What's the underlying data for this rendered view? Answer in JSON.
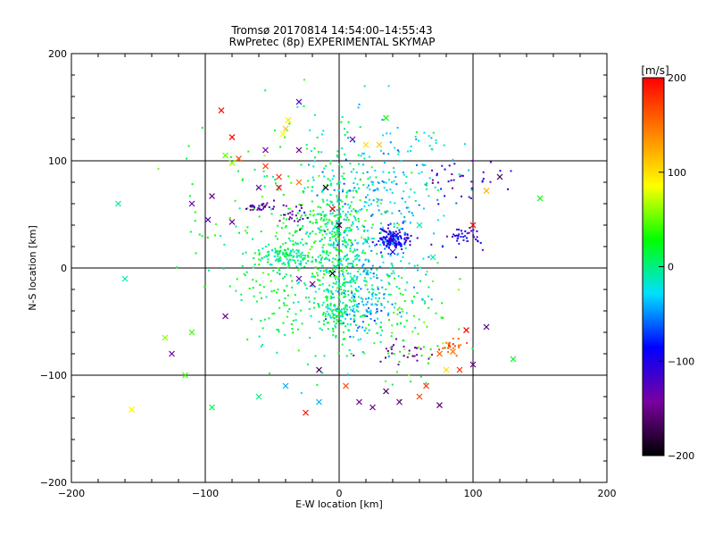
{
  "chart_data": {
    "type": "scatter",
    "title": "Tromsø 20170814 14:54:00–14:55:43",
    "subtitle": "RwPretec (8p) EXPERIMENTAL SKYMAP",
    "xlabel": "E-W location [km]",
    "ylabel": "N-S location [km]",
    "xlim": [
      -200,
      200
    ],
    "ylim": [
      -200,
      200
    ],
    "xticks": [
      "-200",
      "-100",
      "0",
      "100",
      "200"
    ],
    "yticks": [
      "-200",
      "-100",
      "0",
      "100",
      "200"
    ],
    "grid_lines": [
      -100,
      0,
      100
    ],
    "colorbar": {
      "label": "[m/s]",
      "range": [
        -200,
        200
      ],
      "ticks": [
        "200",
        "100",
        "0",
        "-100",
        "-200"
      ],
      "colormap": [
        "#000000",
        "#7a00a0",
        "#0000ff",
        "#00e0ff",
        "#00ff00",
        "#ffff00",
        "#ff8000",
        "#ff0000"
      ]
    },
    "markers": [
      "dot",
      "cross"
    ],
    "clusters": [
      {
        "x": 0,
        "y": 30,
        "sx": 10,
        "sy": 40,
        "v": 0,
        "n": 260
      },
      {
        "x": -40,
        "y": 12,
        "sx": 12,
        "sy": 6,
        "v": 0,
        "n": 130
      },
      {
        "x": -15,
        "y": 45,
        "sx": 10,
        "sy": 10,
        "v": 25,
        "n": 60
      },
      {
        "x": 20,
        "y": 0,
        "sx": 20,
        "sy": 30,
        "v": -30,
        "n": 220
      },
      {
        "x": 40,
        "y": 27,
        "sx": 6,
        "sy": 5,
        "v": -95,
        "n": 150
      },
      {
        "x": 0,
        "y": -40,
        "sx": 8,
        "sy": 10,
        "v": 0,
        "n": 120
      },
      {
        "x": 20,
        "y": -40,
        "sx": 10,
        "sy": 12,
        "v": -40,
        "n": 70
      },
      {
        "x": -20,
        "y": -20,
        "sx": 30,
        "sy": 30,
        "v": 15,
        "n": 200
      },
      {
        "x": 30,
        "y": 80,
        "sx": 30,
        "sy": 30,
        "v": -30,
        "n": 200
      },
      {
        "x": -30,
        "y": 60,
        "sx": 40,
        "sy": 40,
        "v": 20,
        "n": 150
      },
      {
        "x": 50,
        "y": -60,
        "sx": 20,
        "sy": 30,
        "v": 30,
        "n": 80
      },
      {
        "x": 95,
        "y": 28,
        "sx": 8,
        "sy": 5,
        "v": -110,
        "n": 40
      },
      {
        "x": 90,
        "y": 80,
        "sx": 15,
        "sy": 10,
        "v": -110,
        "n": 35
      },
      {
        "x": -60,
        "y": 57,
        "sx": 5,
        "sy": 2,
        "v": -130,
        "n": 30
      },
      {
        "x": -35,
        "y": 50,
        "sx": 5,
        "sy": 5,
        "v": -140,
        "n": 25
      },
      {
        "x": 85,
        "y": -73,
        "sx": 5,
        "sy": 3,
        "v": 160,
        "n": 25
      },
      {
        "x": 45,
        "y": -80,
        "sx": 12,
        "sy": 6,
        "v": -140,
        "n": 25
      }
    ],
    "crosses": [
      {
        "x": -88,
        "y": 147,
        "v": 195
      },
      {
        "x": -80,
        "y": 122,
        "v": 200
      },
      {
        "x": -75,
        "y": 102,
        "v": 170
      },
      {
        "x": -55,
        "y": 95,
        "v": 175
      },
      {
        "x": -45,
        "y": 85,
        "v": 180
      },
      {
        "x": -30,
        "y": 80,
        "v": 150
      },
      {
        "x": -85,
        "y": 105,
        "v": 50
      },
      {
        "x": -80,
        "y": 98,
        "v": 60
      },
      {
        "x": -42,
        "y": 125,
        "v": 90
      },
      {
        "x": -40,
        "y": 130,
        "v": 110
      },
      {
        "x": -38,
        "y": 138,
        "v": 95
      },
      {
        "x": 20,
        "y": 115,
        "v": 100
      },
      {
        "x": 30,
        "y": 115,
        "v": 110
      },
      {
        "x": -30,
        "y": 155,
        "v": -120
      },
      {
        "x": -30,
        "y": 110,
        "v": -150
      },
      {
        "x": -55,
        "y": 110,
        "v": -140
      },
      {
        "x": 10,
        "y": 120,
        "v": -130
      },
      {
        "x": 35,
        "y": 140,
        "v": 30
      },
      {
        "x": -110,
        "y": 60,
        "v": -130
      },
      {
        "x": -98,
        "y": 45,
        "v": -120
      },
      {
        "x": -95,
        "y": 67,
        "v": -150
      },
      {
        "x": -80,
        "y": 43,
        "v": -140
      },
      {
        "x": 20,
        "y": 25,
        "v": -10
      },
      {
        "x": -10,
        "y": 75,
        "v": -200
      },
      {
        "x": -5,
        "y": 55,
        "v": 200
      },
      {
        "x": 0,
        "y": 40,
        "v": -180
      },
      {
        "x": 10,
        "y": -10,
        "v": -10
      },
      {
        "x": -5,
        "y": -5,
        "v": -200
      },
      {
        "x": -20,
        "y": -15,
        "v": -150
      },
      {
        "x": 40,
        "y": 15,
        "v": -100
      },
      {
        "x": 130,
        "y": -85,
        "v": 20
      },
      {
        "x": -110,
        "y": -60,
        "v": 40
      },
      {
        "x": -125,
        "y": -80,
        "v": -140
      },
      {
        "x": -130,
        "y": -65,
        "v": 60
      },
      {
        "x": -115,
        "y": -100,
        "v": 40
      },
      {
        "x": -95,
        "y": -130,
        "v": 10
      },
      {
        "x": -155,
        "y": -132,
        "v": 90
      },
      {
        "x": -160,
        "y": -10,
        "v": -10
      },
      {
        "x": -165,
        "y": 60,
        "v": -10
      },
      {
        "x": -85,
        "y": -45,
        "v": -150
      },
      {
        "x": -60,
        "y": -120,
        "v": 0
      },
      {
        "x": -40,
        "y": -110,
        "v": -40
      },
      {
        "x": -25,
        "y": -135,
        "v": 190
      },
      {
        "x": -15,
        "y": -125,
        "v": -40
      },
      {
        "x": 15,
        "y": -125,
        "v": -150
      },
      {
        "x": 25,
        "y": -130,
        "v": -150
      },
      {
        "x": 35,
        "y": -115,
        "v": -170
      },
      {
        "x": 45,
        "y": -125,
        "v": -150
      },
      {
        "x": 60,
        "y": -120,
        "v": 170
      },
      {
        "x": 65,
        "y": -110,
        "v": 180
      },
      {
        "x": 75,
        "y": -128,
        "v": -160
      },
      {
        "x": 90,
        "y": -95,
        "v": 180
      },
      {
        "x": 100,
        "y": -90,
        "v": -150
      },
      {
        "x": 110,
        "y": -55,
        "v": -160
      },
      {
        "x": 95,
        "y": -58,
        "v": 200
      },
      {
        "x": 100,
        "y": 40,
        "v": 200
      },
      {
        "x": 110,
        "y": 72,
        "v": 120
      },
      {
        "x": 120,
        "y": 85,
        "v": -170
      },
      {
        "x": 150,
        "y": 65,
        "v": 30
      },
      {
        "x": 70,
        "y": 10,
        "v": -10
      },
      {
        "x": 60,
        "y": 40,
        "v": -10
      },
      {
        "x": -30,
        "y": -10,
        "v": -130
      },
      {
        "x": -45,
        "y": 75,
        "v": 200
      },
      {
        "x": -60,
        "y": 75,
        "v": -140
      },
      {
        "x": 80,
        "y": -95,
        "v": 100
      },
      {
        "x": 85,
        "y": -78,
        "v": 150
      },
      {
        "x": 75,
        "y": -80,
        "v": 160
      },
      {
        "x": -15,
        "y": -95,
        "v": -170
      },
      {
        "x": 5,
        "y": -110,
        "v": 170
      }
    ]
  }
}
